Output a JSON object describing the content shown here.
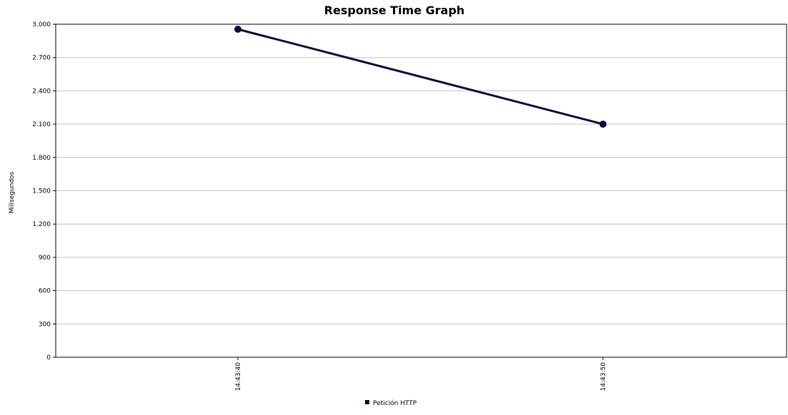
{
  "chart_data": {
    "type": "line",
    "title": "Response Time Graph",
    "xlabel": "",
    "ylabel": "Milisegundos",
    "x": [
      "14:43:40",
      "14:43:50"
    ],
    "series": [
      {
        "name": "Petición HTTP",
        "values": [
          2955,
          2100
        ],
        "color": "#0b0b38"
      }
    ],
    "ylim": [
      0,
      3000
    ],
    "yticks": [
      0,
      300,
      600,
      900,
      1200,
      1500,
      1800,
      2100,
      2400,
      2700,
      3000
    ],
    "ytick_labels": [
      "0",
      "300",
      "600",
      "900",
      "1.200",
      "1.500",
      "1.800",
      "2.100",
      "2.400",
      "2.700",
      "3.000"
    ],
    "grid": true,
    "legend_position": "bottom"
  }
}
